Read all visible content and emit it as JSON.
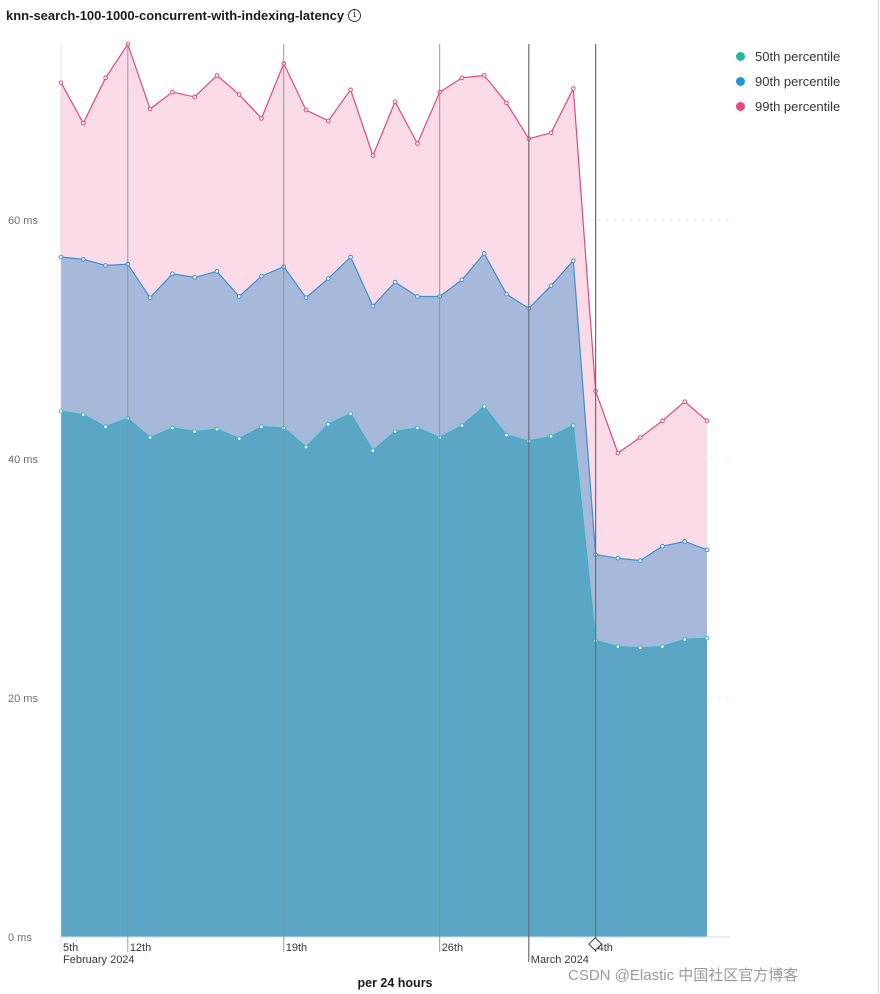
{
  "title": "knn-search-100-1000-concurrent-with-indexing-latency",
  "info_icon": "info-icon",
  "watermark": "CSDN @Elastic 中国社区官方博客",
  "chart_data": {
    "type": "area",
    "title": "knn-search-100-1000-concurrent-with-indexing-latency",
    "xlabel": "per 24 hours",
    "ylabel": "",
    "ylim": [
      0,
      75
    ],
    "yticks": [
      0,
      20,
      40,
      60
    ],
    "ytick_labels": [
      "0 ms",
      "20 ms",
      "40 ms",
      "60 ms"
    ],
    "x_count": 30,
    "xticks": [
      {
        "index": 0,
        "label": "5th",
        "sub": "February 2024",
        "marker": false
      },
      {
        "index": 3,
        "label": "12th",
        "sub": "",
        "marker": true
      },
      {
        "index": 10,
        "label": "19th",
        "sub": "",
        "marker": true
      },
      {
        "index": 17,
        "label": "26th",
        "sub": "",
        "marker": true
      },
      {
        "index": 21,
        "label": "",
        "sub": "March 2024",
        "marker": true
      },
      {
        "index": 24,
        "label": "4th",
        "sub": "",
        "marker": true
      }
    ],
    "grid": true,
    "legend_position": "top-right",
    "series": [
      {
        "name": "99th percentile",
        "color": "#e4467f",
        "fill": "#fadbe7",
        "values": [
          71.5,
          68.1,
          71.9,
          74.7,
          69.3,
          70.7,
          70.3,
          72.1,
          70.5,
          68.5,
          73.1,
          69.2,
          68.3,
          70.9,
          65.4,
          69.9,
          66.4,
          70.7,
          71.9,
          72.1,
          69.8,
          66.8,
          67.3,
          71.0,
          45.7,
          40.5,
          41.8,
          43.2,
          44.8,
          43.2
        ]
      },
      {
        "name": "90th percentile",
        "color": "#3b8fd0",
        "fill": "#a7b9da",
        "values": [
          56.9,
          56.7,
          56.2,
          56.3,
          53.5,
          55.5,
          55.2,
          55.7,
          53.6,
          55.3,
          56.1,
          53.5,
          55.1,
          56.9,
          52.8,
          54.8,
          53.6,
          53.6,
          55.0,
          57.2,
          53.8,
          52.6,
          54.5,
          56.6,
          32.0,
          31.7,
          31.5,
          32.7,
          33.1,
          32.4
        ]
      },
      {
        "name": "50th percentile",
        "color": "#36b4c4",
        "fill": "#5ba6c4",
        "values": [
          44.0,
          43.7,
          42.7,
          43.4,
          41.8,
          42.6,
          42.3,
          42.5,
          41.7,
          42.7,
          42.6,
          41.0,
          42.9,
          43.8,
          40.7,
          42.3,
          42.6,
          41.8,
          42.8,
          44.4,
          42.0,
          41.5,
          41.9,
          42.8,
          24.8,
          24.3,
          24.2,
          24.3,
          24.9,
          25.0
        ]
      }
    ],
    "legend": [
      {
        "name": "50th percentile",
        "color": "#1fb99b"
      },
      {
        "name": "90th percentile",
        "color": "#1b9ad8"
      },
      {
        "name": "99th percentile",
        "color": "#e4467f"
      }
    ]
  }
}
